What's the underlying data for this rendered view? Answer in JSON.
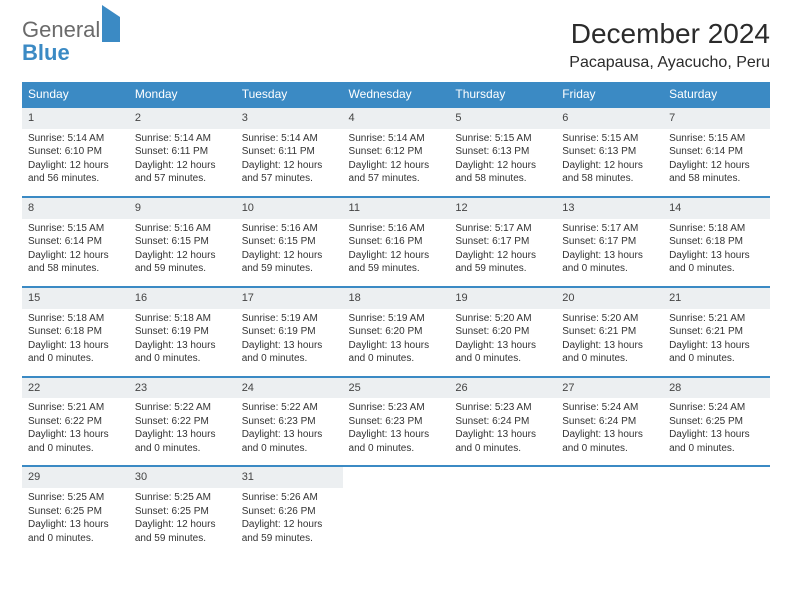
{
  "brand": {
    "line1": "General",
    "line2": "Blue"
  },
  "title": "December 2024",
  "location": "Pacapausa, Ayacucho, Peru",
  "colors": {
    "header_bar": "#3b8ac4",
    "daynum_bg": "#eceff1",
    "rule": "#3b8ac4",
    "text": "#333333",
    "title_text": "#2b2b2b",
    "logo_gray": "#6a6a6a",
    "logo_blue": "#3b8ac4",
    "background": "#ffffff"
  },
  "typography": {
    "title_fontsize": 28,
    "location_fontsize": 16,
    "dow_fontsize": 12,
    "daynum_fontsize": 11,
    "body_fontsize": 10
  },
  "days_of_week": [
    "Sunday",
    "Monday",
    "Tuesday",
    "Wednesday",
    "Thursday",
    "Friday",
    "Saturday"
  ],
  "weeks": [
    [
      {
        "n": "1",
        "sunrise": "Sunrise: 5:14 AM",
        "sunset": "Sunset: 6:10 PM",
        "daylight": "Daylight: 12 hours and 56 minutes."
      },
      {
        "n": "2",
        "sunrise": "Sunrise: 5:14 AM",
        "sunset": "Sunset: 6:11 PM",
        "daylight": "Daylight: 12 hours and 57 minutes."
      },
      {
        "n": "3",
        "sunrise": "Sunrise: 5:14 AM",
        "sunset": "Sunset: 6:11 PM",
        "daylight": "Daylight: 12 hours and 57 minutes."
      },
      {
        "n": "4",
        "sunrise": "Sunrise: 5:14 AM",
        "sunset": "Sunset: 6:12 PM",
        "daylight": "Daylight: 12 hours and 57 minutes."
      },
      {
        "n": "5",
        "sunrise": "Sunrise: 5:15 AM",
        "sunset": "Sunset: 6:13 PM",
        "daylight": "Daylight: 12 hours and 58 minutes."
      },
      {
        "n": "6",
        "sunrise": "Sunrise: 5:15 AM",
        "sunset": "Sunset: 6:13 PM",
        "daylight": "Daylight: 12 hours and 58 minutes."
      },
      {
        "n": "7",
        "sunrise": "Sunrise: 5:15 AM",
        "sunset": "Sunset: 6:14 PM",
        "daylight": "Daylight: 12 hours and 58 minutes."
      }
    ],
    [
      {
        "n": "8",
        "sunrise": "Sunrise: 5:15 AM",
        "sunset": "Sunset: 6:14 PM",
        "daylight": "Daylight: 12 hours and 58 minutes."
      },
      {
        "n": "9",
        "sunrise": "Sunrise: 5:16 AM",
        "sunset": "Sunset: 6:15 PM",
        "daylight": "Daylight: 12 hours and 59 minutes."
      },
      {
        "n": "10",
        "sunrise": "Sunrise: 5:16 AM",
        "sunset": "Sunset: 6:15 PM",
        "daylight": "Daylight: 12 hours and 59 minutes."
      },
      {
        "n": "11",
        "sunrise": "Sunrise: 5:16 AM",
        "sunset": "Sunset: 6:16 PM",
        "daylight": "Daylight: 12 hours and 59 minutes."
      },
      {
        "n": "12",
        "sunrise": "Sunrise: 5:17 AM",
        "sunset": "Sunset: 6:17 PM",
        "daylight": "Daylight: 12 hours and 59 minutes."
      },
      {
        "n": "13",
        "sunrise": "Sunrise: 5:17 AM",
        "sunset": "Sunset: 6:17 PM",
        "daylight": "Daylight: 13 hours and 0 minutes."
      },
      {
        "n": "14",
        "sunrise": "Sunrise: 5:18 AM",
        "sunset": "Sunset: 6:18 PM",
        "daylight": "Daylight: 13 hours and 0 minutes."
      }
    ],
    [
      {
        "n": "15",
        "sunrise": "Sunrise: 5:18 AM",
        "sunset": "Sunset: 6:18 PM",
        "daylight": "Daylight: 13 hours and 0 minutes."
      },
      {
        "n": "16",
        "sunrise": "Sunrise: 5:18 AM",
        "sunset": "Sunset: 6:19 PM",
        "daylight": "Daylight: 13 hours and 0 minutes."
      },
      {
        "n": "17",
        "sunrise": "Sunrise: 5:19 AM",
        "sunset": "Sunset: 6:19 PM",
        "daylight": "Daylight: 13 hours and 0 minutes."
      },
      {
        "n": "18",
        "sunrise": "Sunrise: 5:19 AM",
        "sunset": "Sunset: 6:20 PM",
        "daylight": "Daylight: 13 hours and 0 minutes."
      },
      {
        "n": "19",
        "sunrise": "Sunrise: 5:20 AM",
        "sunset": "Sunset: 6:20 PM",
        "daylight": "Daylight: 13 hours and 0 minutes."
      },
      {
        "n": "20",
        "sunrise": "Sunrise: 5:20 AM",
        "sunset": "Sunset: 6:21 PM",
        "daylight": "Daylight: 13 hours and 0 minutes."
      },
      {
        "n": "21",
        "sunrise": "Sunrise: 5:21 AM",
        "sunset": "Sunset: 6:21 PM",
        "daylight": "Daylight: 13 hours and 0 minutes."
      }
    ],
    [
      {
        "n": "22",
        "sunrise": "Sunrise: 5:21 AM",
        "sunset": "Sunset: 6:22 PM",
        "daylight": "Daylight: 13 hours and 0 minutes."
      },
      {
        "n": "23",
        "sunrise": "Sunrise: 5:22 AM",
        "sunset": "Sunset: 6:22 PM",
        "daylight": "Daylight: 13 hours and 0 minutes."
      },
      {
        "n": "24",
        "sunrise": "Sunrise: 5:22 AM",
        "sunset": "Sunset: 6:23 PM",
        "daylight": "Daylight: 13 hours and 0 minutes."
      },
      {
        "n": "25",
        "sunrise": "Sunrise: 5:23 AM",
        "sunset": "Sunset: 6:23 PM",
        "daylight": "Daylight: 13 hours and 0 minutes."
      },
      {
        "n": "26",
        "sunrise": "Sunrise: 5:23 AM",
        "sunset": "Sunset: 6:24 PM",
        "daylight": "Daylight: 13 hours and 0 minutes."
      },
      {
        "n": "27",
        "sunrise": "Sunrise: 5:24 AM",
        "sunset": "Sunset: 6:24 PM",
        "daylight": "Daylight: 13 hours and 0 minutes."
      },
      {
        "n": "28",
        "sunrise": "Sunrise: 5:24 AM",
        "sunset": "Sunset: 6:25 PM",
        "daylight": "Daylight: 13 hours and 0 minutes."
      }
    ],
    [
      {
        "n": "29",
        "sunrise": "Sunrise: 5:25 AM",
        "sunset": "Sunset: 6:25 PM",
        "daylight": "Daylight: 13 hours and 0 minutes."
      },
      {
        "n": "30",
        "sunrise": "Sunrise: 5:25 AM",
        "sunset": "Sunset: 6:25 PM",
        "daylight": "Daylight: 12 hours and 59 minutes."
      },
      {
        "n": "31",
        "sunrise": "Sunrise: 5:26 AM",
        "sunset": "Sunset: 6:26 PM",
        "daylight": "Daylight: 12 hours and 59 minutes."
      },
      null,
      null,
      null,
      null
    ]
  ]
}
